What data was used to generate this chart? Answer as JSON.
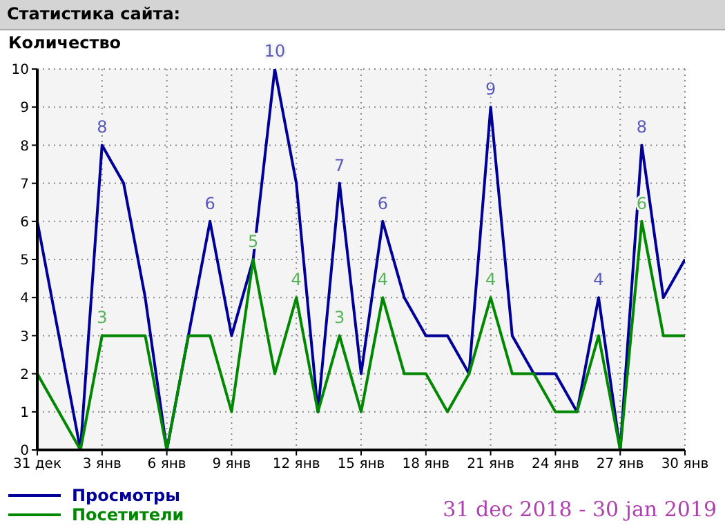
{
  "chart_data": {
    "type": "line",
    "title": "Статистика сайта:",
    "ylabel": "Количество",
    "categories": [
      "31 дек",
      null,
      null,
      "3 янв",
      null,
      null,
      "6 янв",
      null,
      null,
      "9 янв",
      null,
      null,
      "12 янв",
      null,
      null,
      "15 янв",
      null,
      null,
      "18 янв",
      null,
      null,
      "21 янв",
      null,
      null,
      "24 янв",
      null,
      null,
      "27 янв",
      null,
      null,
      "30 янв"
    ],
    "series": [
      {
        "name": "Просмотры",
        "color": "#000099",
        "values": [
          6,
          3,
          0,
          8,
          7,
          4,
          0,
          3,
          6,
          3,
          5,
          10,
          7,
          1,
          7,
          2,
          6,
          4,
          3,
          3,
          2,
          9,
          3,
          2,
          2,
          1,
          4,
          0,
          8,
          4,
          5
        ],
        "value_labels": [
          null,
          null,
          null,
          "8",
          null,
          null,
          null,
          null,
          "6",
          null,
          null,
          "10",
          null,
          null,
          "7",
          null,
          "6",
          null,
          null,
          null,
          null,
          "9",
          null,
          null,
          null,
          null,
          "4",
          null,
          "8",
          null,
          null
        ]
      },
      {
        "name": "Посетители",
        "color": "#008800",
        "values": [
          2,
          1,
          0,
          3,
          3,
          3,
          0,
          3,
          3,
          1,
          5,
          2,
          4,
          1,
          3,
          1,
          4,
          2,
          2,
          1,
          2,
          4,
          2,
          2,
          1,
          1,
          3,
          0,
          6,
          3,
          3
        ],
        "value_labels": [
          null,
          null,
          null,
          "3",
          null,
          null,
          null,
          null,
          null,
          null,
          "5",
          null,
          "4",
          null,
          "3",
          null,
          "4",
          null,
          null,
          null,
          null,
          "4",
          null,
          null,
          null,
          null,
          null,
          null,
          "6",
          null,
          null
        ]
      }
    ],
    "ylim": [
      0,
      10
    ],
    "yticks": [
      0,
      1,
      2,
      3,
      4,
      5,
      6,
      7,
      8,
      9,
      10
    ],
    "grid": true,
    "legend": "bottom left",
    "marker": "none",
    "line_style": "solid",
    "annotations": [
      "31 dec 2018 - 30 jan 2019"
    ]
  }
}
